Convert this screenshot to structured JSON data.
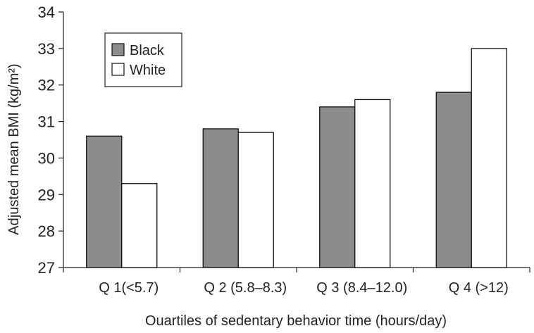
{
  "chart_data": {
    "type": "bar",
    "title": "",
    "xlabel": "Ouartiles of sedentary behavior time (hours/day)",
    "ylabel": "Adjusted mean BMI (kg/m²)",
    "ylim": [
      27,
      34
    ],
    "yticks": [
      27,
      28,
      29,
      30,
      31,
      32,
      33,
      34
    ],
    "categories": [
      "Q 1(<5.7)",
      "Q 2 (5.8–8.3)",
      "Q 3 (8.4–12.0)",
      "Q 4 (>12)"
    ],
    "series": [
      {
        "name": "Black",
        "values": [
          30.6,
          30.8,
          31.4,
          31.8
        ],
        "color": "#8c8c8c"
      },
      {
        "name": "White",
        "values": [
          29.3,
          30.7,
          31.6,
          33.0
        ],
        "color": "#ffffff"
      }
    ],
    "grid": false,
    "legend_position": "top-left"
  }
}
